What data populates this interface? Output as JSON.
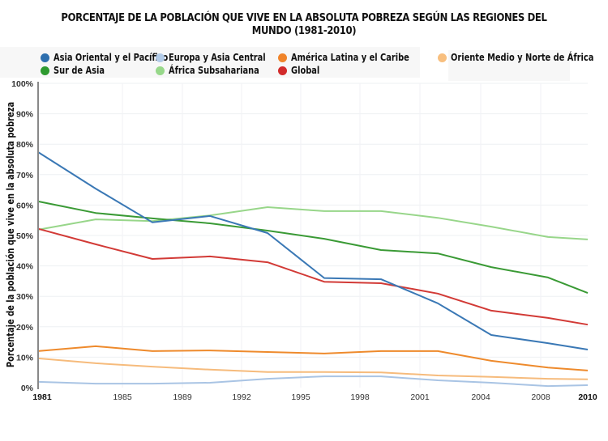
{
  "chart_data": {
    "type": "line",
    "title": "PORCENTAJE DE LA POBLACIÓN QUE VIVE EN LA ABSOLUTA POBREZA SEGÚN LAS REGIONES DEL MUNDO (1981-2010)",
    "xlabel": "",
    "ylabel": "Porcentaje de la población que vive en la absoluta pobreza",
    "ylim": [
      0,
      100
    ],
    "y_ticks": [
      "0%",
      "10%",
      "20%",
      "30%",
      "40%",
      "50%",
      "60%",
      "70%",
      "80%",
      "90%",
      "100%"
    ],
    "x_tick_labels": [
      "1981",
      "1985",
      "1989",
      "1992",
      "1995",
      "1998",
      "2001",
      "2004",
      "2008",
      "2010"
    ],
    "x": [
      1981,
      1984,
      1987,
      1990,
      1993,
      1996,
      1999,
      2002,
      2005,
      2008,
      2010
    ],
    "grid": true,
    "legend_position": "top",
    "series": [
      {
        "name": "Asia Oriental y el Pacífico",
        "color": "#3a78b5",
        "values": [
          77.4,
          65.4,
          54.3,
          56.4,
          50.8,
          36.0,
          35.6,
          27.7,
          17.3,
          14.6,
          12.5
        ]
      },
      {
        "name": "Europa y Asia Central",
        "color": "#a9c4e4",
        "values": [
          1.9,
          1.3,
          1.3,
          1.6,
          2.9,
          3.7,
          3.7,
          2.4,
          1.6,
          0.5,
          0.8
        ]
      },
      {
        "name": "América Latina y el Caribe",
        "color": "#ee8a2c",
        "values": [
          12.0,
          13.6,
          12.0,
          12.2,
          11.7,
          11.2,
          12.0,
          12.0,
          8.8,
          6.6,
          5.6
        ]
      },
      {
        "name": "Oriente Medio y Norte de África",
        "color": "#f6bb7c",
        "values": [
          9.6,
          8.0,
          6.9,
          5.9,
          5.1,
          5.1,
          5.0,
          4.0,
          3.5,
          2.9,
          2.7
        ]
      },
      {
        "name": "Sur de Asia",
        "color": "#3a9a35",
        "values": [
          61.2,
          57.4,
          55.6,
          54.0,
          51.6,
          48.9,
          45.2,
          44.1,
          39.6,
          36.2,
          31.1
        ]
      },
      {
        "name": "África Subsahariana",
        "color": "#98d68a",
        "values": [
          51.9,
          55.3,
          54.7,
          56.6,
          59.3,
          58.0,
          58.0,
          55.8,
          52.9,
          49.5,
          48.7
        ]
      },
      {
        "name": "Global",
        "color": "#d23a36",
        "values": [
          52.2,
          47.1,
          42.3,
          43.1,
          41.2,
          34.8,
          34.3,
          30.9,
          25.3,
          22.9,
          20.7
        ]
      }
    ]
  },
  "legend": [
    {
      "label": "Asia Oriental y el Pacífico",
      "color": "#2e6fae"
    },
    {
      "label": "Europa y Asia Central",
      "color": "#b2cbe8"
    },
    {
      "label": "América Latina y el Caribe",
      "color": "#f0842a"
    },
    {
      "label": "Oriente Medio y Norte de África",
      "color": "#f8bf7f"
    },
    {
      "label": "Sur de Asia",
      "color": "#2e9a30"
    },
    {
      "label": "África Subsahariana",
      "color": "#97d88a"
    },
    {
      "label": "Global",
      "color": "#d22b2b"
    }
  ]
}
